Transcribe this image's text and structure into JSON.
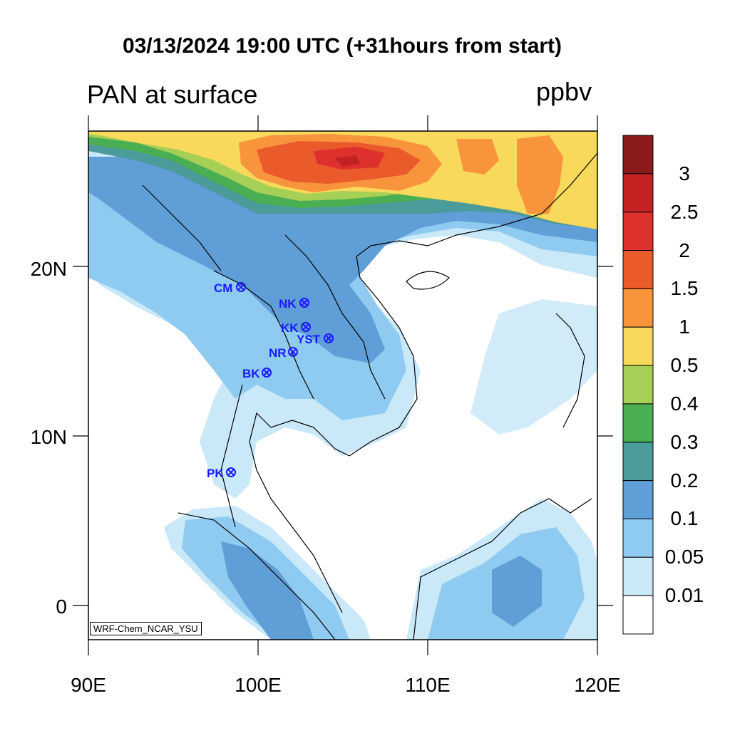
{
  "title": "03/13/2024 19:00 UTC (+31hours from start)",
  "variable_label": "PAN at surface",
  "unit_label": "ppbv",
  "credit": "WRF-Chem_NCAR_YSU",
  "axes": {
    "lon_labels": [
      "90E",
      "100E",
      "110E",
      "120E"
    ],
    "lat_labels": [
      "20N",
      "10N",
      "0"
    ]
  },
  "colorbar": {
    "levels": [
      "3",
      "2.5",
      "2",
      "1.5",
      "1",
      "0.5",
      "0.4",
      "0.3",
      "0.2",
      "0.1",
      "0.05",
      "0.01"
    ],
    "colors": [
      "#8b1a1a",
      "#c42122",
      "#de302c",
      "#ea5a2b",
      "#f7943c",
      "#f8d95c",
      "#a6cf55",
      "#4aae52",
      "#4a9b9a",
      "#5f9ed6",
      "#8fcbf0",
      "#c9e8f8",
      "#ffffff"
    ]
  },
  "stations": [
    {
      "code": "CM"
    },
    {
      "code": "NK"
    },
    {
      "code": "KK"
    },
    {
      "code": "YST"
    },
    {
      "code": "NR"
    },
    {
      "code": "BK"
    },
    {
      "code": "PK"
    }
  ]
}
